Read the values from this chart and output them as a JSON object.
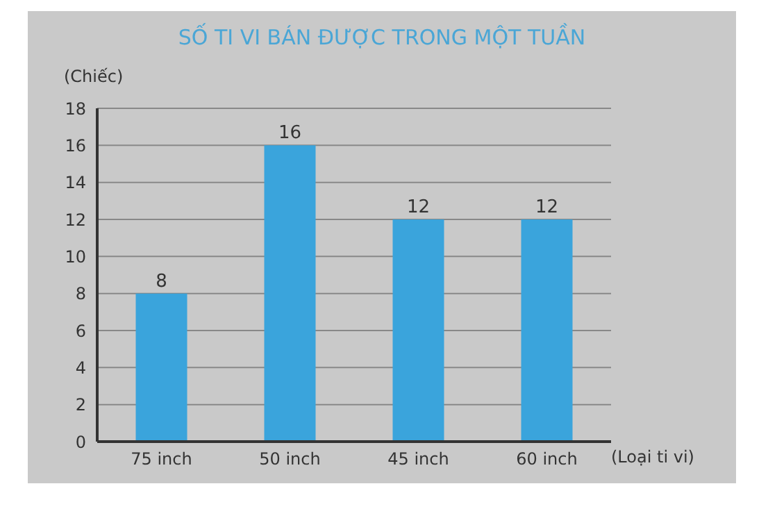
{
  "chart_data": {
    "type": "bar",
    "title": "SỐ TI VI BÁN ĐƯỢC TRONG MỘT TUẦN",
    "ylabel": "(Chiếc)",
    "xlabel": "(Loại ti vi)",
    "categories": [
      "75 inch",
      "50 inch",
      "45 inch",
      "60 inch"
    ],
    "values": [
      8,
      16,
      12,
      12
    ],
    "color": "#3aa4dc",
    "ylim": [
      0,
      18
    ],
    "yticks": [
      0,
      2,
      4,
      6,
      8,
      10,
      12,
      14,
      16,
      18
    ],
    "grid": "y",
    "data_labels": true
  }
}
